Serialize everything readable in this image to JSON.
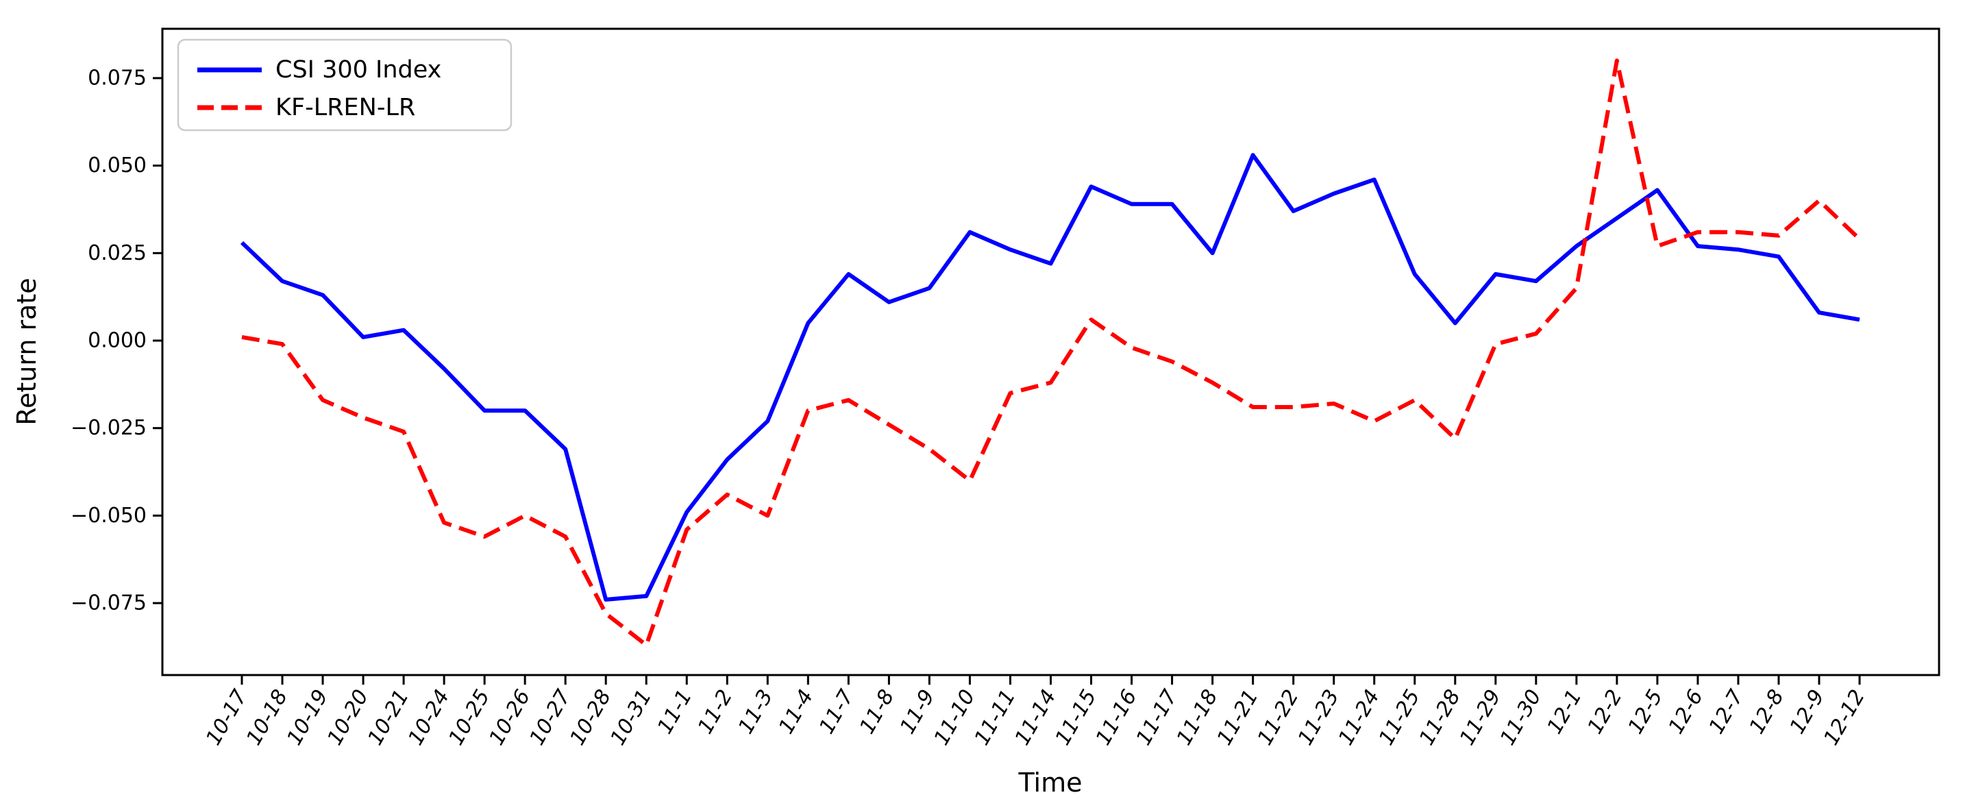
{
  "figure": {
    "background": "#ffffff",
    "frame_color": "#000000"
  },
  "axes": {
    "xlabel": "Time",
    "ylabel": "Return rate",
    "y_tick_labels": [
      "0.075",
      "0.050",
      "0.025",
      "0.000",
      "−0.025",
      "−0.050",
      "−0.075"
    ],
    "y_tick_values": [
      0.075,
      0.05,
      0.025,
      0.0,
      -0.025,
      -0.05,
      -0.075
    ]
  },
  "legend": {
    "border_color": "#cccccc",
    "background": "#ffffff",
    "entries": [
      {
        "label": "CSI 300 Index",
        "color": "#0000ff",
        "style": "solid"
      },
      {
        "label": "KF-LREN-LR",
        "color": "#ff0000",
        "style": "dashed"
      }
    ]
  },
  "chart_data": {
    "type": "line",
    "title": "",
    "xlabel": "Time",
    "ylabel": "Return rate",
    "x": [
      "10-17",
      "10-18",
      "10-19",
      "10-20",
      "10-21",
      "10-24",
      "10-25",
      "10-26",
      "10-27",
      "10-28",
      "10-31",
      "11-1",
      "11-2",
      "11-3",
      "11-4",
      "11-7",
      "11-8",
      "11-9",
      "11-10",
      "11-11",
      "11-14",
      "11-15",
      "11-16",
      "11-17",
      "11-18",
      "11-21",
      "11-22",
      "11-23",
      "11-24",
      "11-25",
      "11-28",
      "11-29",
      "11-30",
      "12-1",
      "12-2",
      "12-5",
      "12-6",
      "12-7",
      "12-8",
      "12-9",
      "12-12"
    ],
    "series": [
      {
        "name": "CSI 300 Index",
        "color": "#0000ff",
        "line_style": "solid",
        "values": [
          0.028,
          0.017,
          0.013,
          0.001,
          0.003,
          -0.008,
          -0.02,
          -0.02,
          -0.031,
          -0.074,
          -0.073,
          -0.049,
          -0.034,
          -0.023,
          0.005,
          0.019,
          0.011,
          0.015,
          0.031,
          0.026,
          0.022,
          0.044,
          0.039,
          0.039,
          0.025,
          0.053,
          0.037,
          0.042,
          0.046,
          0.019,
          0.005,
          0.019,
          0.017,
          0.027,
          0.035,
          0.043,
          0.027,
          0.026,
          0.024,
          0.008,
          0.006
        ]
      },
      {
        "name": "KF-LREN-LR",
        "color": "#ff0000",
        "line_style": "dashed",
        "values": [
          0.001,
          -0.001,
          -0.017,
          -0.022,
          -0.026,
          -0.052,
          -0.056,
          -0.05,
          -0.056,
          -0.078,
          -0.087,
          -0.054,
          -0.044,
          -0.05,
          -0.02,
          -0.017,
          -0.024,
          -0.031,
          -0.04,
          -0.015,
          -0.012,
          0.006,
          -0.002,
          -0.006,
          -0.012,
          -0.019,
          -0.019,
          -0.018,
          -0.023,
          -0.017,
          -0.028,
          -0.001,
          0.002,
          0.015,
          0.08,
          0.027,
          0.031,
          0.031,
          0.03,
          0.04,
          0.029
        ]
      }
    ],
    "ylim": [
      -0.0955,
      0.089
    ],
    "y_ticks": [
      0.075,
      0.05,
      0.025,
      0.0,
      -0.025,
      -0.05,
      -0.075
    ],
    "grid": false,
    "legend_position": "upper left"
  }
}
